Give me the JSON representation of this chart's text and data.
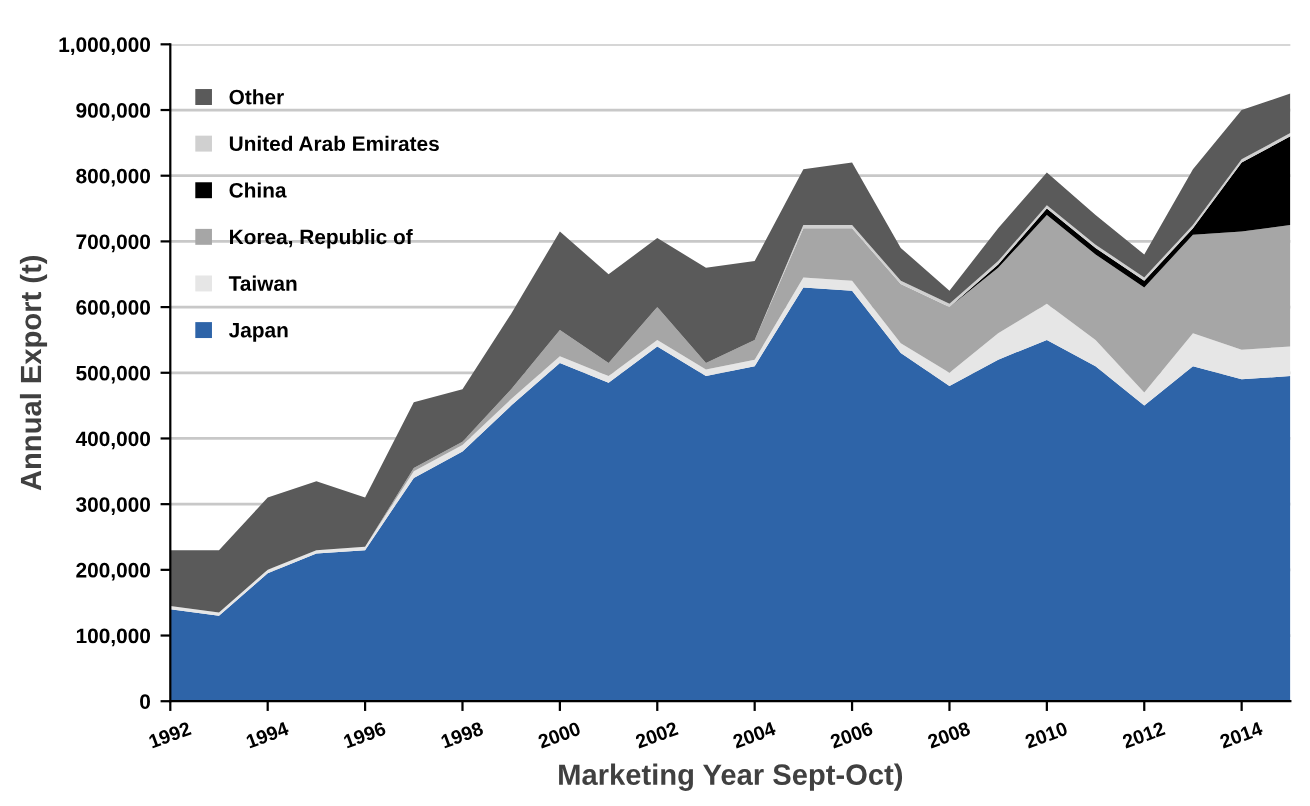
{
  "chart_data": {
    "type": "area",
    "stacked": true,
    "xlabel": "Marketing Year Sept-Oct)",
    "ylabel": "Annual Export (t)",
    "x": [
      1992,
      1993,
      1994,
      1995,
      1996,
      1997,
      1998,
      1999,
      2000,
      2001,
      2002,
      2003,
      2004,
      2005,
      2006,
      2007,
      2008,
      2009,
      2010,
      2011,
      2012,
      2013,
      2014,
      2015
    ],
    "series": [
      {
        "name": "Japan",
        "color": "#2e64a8",
        "values": [
          140000,
          130000,
          195000,
          225000,
          230000,
          340000,
          380000,
          450000,
          515000,
          485000,
          540000,
          495000,
          510000,
          630000,
          625000,
          530000,
          480000,
          520000,
          550000,
          510000,
          450000,
          510000,
          490000,
          495000
        ]
      },
      {
        "name": "Taiwan",
        "color": "#e6e6e6",
        "values": [
          5000,
          5000,
          5000,
          5000,
          5000,
          10000,
          10000,
          10000,
          10000,
          10000,
          10000,
          10000,
          10000,
          15000,
          15000,
          15000,
          20000,
          40000,
          55000,
          40000,
          20000,
          50000,
          45000,
          45000
        ]
      },
      {
        "name": "Korea, Republic of",
        "color": "#a6a6a6",
        "values": [
          0,
          0,
          0,
          0,
          0,
          5000,
          5000,
          15000,
          40000,
          20000,
          50000,
          10000,
          30000,
          75000,
          80000,
          90000,
          100000,
          100000,
          135000,
          130000,
          160000,
          150000,
          180000,
          185000
        ]
      },
      {
        "name": "China",
        "color": "#000000",
        "values": [
          0,
          0,
          0,
          0,
          0,
          0,
          0,
          0,
          0,
          0,
          0,
          0,
          0,
          0,
          0,
          0,
          0,
          5000,
          10000,
          10000,
          10000,
          10000,
          105000,
          135000
        ]
      },
      {
        "name": "United Arab Emirates",
        "color": "#d0d0d0",
        "values": [
          0,
          0,
          0,
          0,
          0,
          0,
          0,
          0,
          0,
          0,
          0,
          0,
          0,
          5000,
          5000,
          5000,
          5000,
          5000,
          5000,
          5000,
          5000,
          5000,
          5000,
          5000
        ]
      },
      {
        "name": "Other",
        "color": "#5a5a5a",
        "values": [
          85000,
          95000,
          110000,
          105000,
          75000,
          100000,
          80000,
          115000,
          150000,
          135000,
          105000,
          145000,
          120000,
          85000,
          95000,
          50000,
          20000,
          50000,
          50000,
          45000,
          35000,
          85000,
          75000,
          60000
        ]
      }
    ],
    "xlim": [
      1992,
      2015
    ],
    "xticks": [
      1992,
      1994,
      1996,
      1998,
      2000,
      2002,
      2004,
      2006,
      2008,
      2010,
      2012,
      2014
    ],
    "ylim": [
      0,
      1000000
    ],
    "yticks": [
      0,
      {
        "value": 100000,
        "label": "100,000"
      },
      {
        "value": 200000,
        "label": "200,000"
      },
      {
        "value": 300000,
        "label": "300,000"
      },
      {
        "value": 400000,
        "label": "400,000"
      },
      {
        "value": 500000,
        "label": "500,000"
      },
      {
        "value": 600000,
        "label": "600,000"
      },
      {
        "value": 700000,
        "label": "700,000"
      },
      {
        "value": 800000,
        "label": "800,000"
      },
      {
        "value": 900000,
        "label": "900,000"
      },
      {
        "value": 1000000,
        "label": "1,000,000"
      }
    ],
    "grid": "y",
    "legend": "top left"
  }
}
